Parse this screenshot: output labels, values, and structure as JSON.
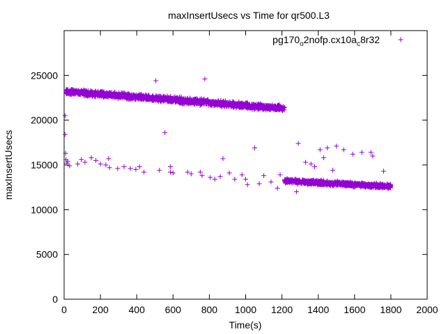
{
  "chart_data": {
    "type": "scatter",
    "title": "maxInsertUsecs vs Time for qr500.L3",
    "xlabel": "Time(s)",
    "ylabel": "maxInsertUsecs",
    "xlim": [
      0,
      2000
    ],
    "ylim": [
      0,
      30000
    ],
    "xticks": [
      "0",
      "200",
      "400",
      "600",
      "800",
      "1000",
      "1200",
      "1400",
      "1600",
      "1800",
      "2000"
    ],
    "yticks": [
      "0",
      "5000",
      "10000",
      "15000",
      "20000",
      "25000"
    ],
    "grid": false,
    "legend_position": "top-right",
    "marker": "+",
    "color": "#9400d3",
    "series": [
      {
        "name_parts": [
          "pg170",
          "o",
          "2nofp.cx10a",
          "c",
          "8r32"
        ],
        "clusters": [
          {
            "x_range": [
              10,
              1215
            ],
            "y_start": 23200,
            "y_end": 21300,
            "spread": 450,
            "description": "dense upper band"
          },
          {
            "x_range": [
              1215,
              1800
            ],
            "y_start": 13200,
            "y_end": 12600,
            "spread": 350,
            "description": "dense lower band"
          }
        ],
        "points": [
          [
            5,
            20500
          ],
          [
            5,
            18400
          ],
          [
            8,
            16300
          ],
          [
            10,
            15600
          ],
          [
            15,
            15200
          ],
          [
            20,
            15400
          ],
          [
            30,
            14900
          ],
          [
            75,
            15100
          ],
          [
            95,
            15600
          ],
          [
            115,
            15300
          ],
          [
            150,
            15800
          ],
          [
            175,
            15500
          ],
          [
            200,
            15100
          ],
          [
            230,
            15000
          ],
          [
            245,
            15700
          ],
          [
            250,
            14700
          ],
          [
            295,
            14600
          ],
          [
            330,
            14800
          ],
          [
            365,
            14600
          ],
          [
            395,
            14500
          ],
          [
            415,
            14800
          ],
          [
            440,
            14200
          ],
          [
            525,
            14400
          ],
          [
            585,
            14800
          ],
          [
            585,
            14200
          ],
          [
            600,
            14100
          ],
          [
            680,
            14200
          ],
          [
            700,
            14000
          ],
          [
            750,
            14200
          ],
          [
            760,
            13800
          ],
          [
            805,
            13600
          ],
          [
            830,
            13400
          ],
          [
            860,
            13700
          ],
          [
            875,
            15700
          ],
          [
            910,
            14100
          ],
          [
            940,
            13400
          ],
          [
            980,
            13900
          ],
          [
            1000,
            13400
          ],
          [
            1010,
            12800
          ],
          [
            1050,
            16900
          ],
          [
            1075,
            12900
          ],
          [
            1100,
            13800
          ],
          [
            1140,
            13100
          ],
          [
            1175,
            12400
          ],
          [
            1190,
            13900
          ],
          [
            555,
            18600
          ],
          [
            505,
            24400
          ],
          [
            775,
            24600
          ],
          [
            1290,
            17400
          ],
          [
            1330,
            15300
          ],
          [
            1360,
            15100
          ],
          [
            1380,
            14800
          ],
          [
            1410,
            16700
          ],
          [
            1430,
            15800
          ],
          [
            1450,
            16900
          ],
          [
            1480,
            14400
          ],
          [
            1500,
            17100
          ],
          [
            1540,
            16700
          ],
          [
            1590,
            16200
          ],
          [
            1640,
            16400
          ],
          [
            1690,
            16400
          ],
          [
            1700,
            16000
          ],
          [
            1280,
            12000
          ],
          [
            1760,
            14300
          ]
        ]
      }
    ]
  }
}
